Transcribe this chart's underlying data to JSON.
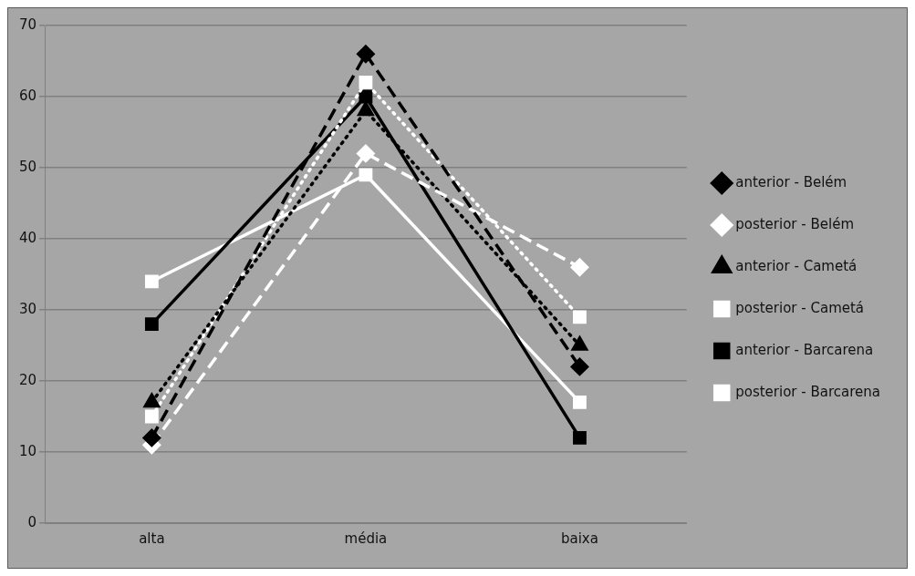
{
  "chart_data": {
    "type": "line",
    "categories": [
      "alta",
      "média",
      "baixa"
    ],
    "series": [
      {
        "name": "anterior - Belém",
        "color": "#000000",
        "marker": "diamond",
        "line_style": "dashed",
        "values": [
          12,
          66,
          22
        ]
      },
      {
        "name": "posterior - Belém",
        "color": "#ffffff",
        "marker": "diamond",
        "line_style": "dashed",
        "values": [
          11,
          52,
          36
        ]
      },
      {
        "name": "anterior - Cametá",
        "color": "#000000",
        "marker": "triangle",
        "line_style": "dotted",
        "values": [
          17,
          58,
          25
        ]
      },
      {
        "name": "posterior - Cametá",
        "color": "#ffffff",
        "marker": "square",
        "line_style": "dotted",
        "values": [
          15,
          62,
          29
        ]
      },
      {
        "name": "anterior - Barcarena",
        "color": "#000000",
        "marker": "square",
        "line_style": "solid",
        "values": [
          28,
          60,
          12
        ]
      },
      {
        "name": "posterior - Barcarena",
        "color": "#ffffff",
        "marker": "square",
        "line_style": "solid",
        "values": [
          34,
          49,
          17
        ]
      }
    ],
    "ylim": [
      0,
      70
    ],
    "yticks": [
      0,
      10,
      20,
      30,
      40,
      50,
      60,
      70
    ],
    "grid": "y",
    "legend": "right"
  }
}
